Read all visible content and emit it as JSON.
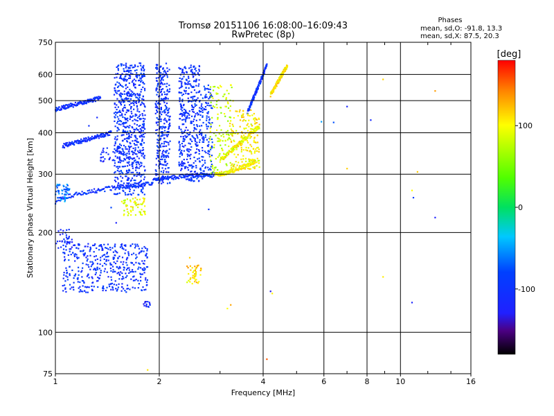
{
  "chart_data": {
    "type": "scatter",
    "title": "Tromsø 20151106 16:08:00–16:09:43",
    "subtitle": "RwPretec (8p)",
    "xlabel": "Frequency [MHz]",
    "ylabel": "Stationary phase Virtual Height [km]",
    "x_scale": "log",
    "y_scale": "log",
    "xlim": [
      1,
      16
    ],
    "ylim": [
      75,
      750
    ],
    "x_ticks": [
      {
        "value": 1,
        "label": "1"
      },
      {
        "value": 2,
        "label": "2"
      },
      {
        "value": 4,
        "label": "4"
      },
      {
        "value": 6,
        "label": "6"
      },
      {
        "value": 8,
        "label": "8"
      },
      {
        "value": 10,
        "label": "10"
      },
      {
        "value": 16,
        "label": "16"
      }
    ],
    "y_ticks": [
      {
        "value": 75,
        "label": "75"
      },
      {
        "value": 100,
        "label": "100"
      },
      {
        "value": 200,
        "label": "200"
      },
      {
        "value": 300,
        "label": "300"
      },
      {
        "value": 400,
        "label": "400"
      },
      {
        "value": 500,
        "label": "500"
      },
      {
        "value": 600,
        "label": "600"
      },
      {
        "value": 750,
        "label": "750"
      }
    ],
    "grid": true,
    "legend": {
      "title": "Phases",
      "line1": "mean, sd,O: -91.8, 13.3",
      "line2": "mean, sd,X:  87.5, 20.3",
      "placement": "top-right"
    },
    "colorbar": {
      "label": "[deg]",
      "range": [
        -180,
        180
      ],
      "ticks": [
        {
          "value": 100,
          "label": "100"
        },
        {
          "value": 0,
          "label": "0"
        },
        {
          "value": -100,
          "label": "-100"
        }
      ],
      "placement": "right"
    },
    "traces": [
      {
        "x0": 1.0,
        "x1": 1.9,
        "y0": 248,
        "y1": 282,
        "phase": -100,
        "curve": 0.6
      },
      {
        "x0": 1.9,
        "x1": 2.9,
        "y0": 282,
        "y1": 300,
        "phase": -100,
        "curve": 0.4
      },
      {
        "x0": 2.9,
        "x1": 3.8,
        "y0": 300,
        "y1": 330,
        "phase": 100,
        "curve": 1.6
      },
      {
        "x0": 1.0,
        "x1": 1.35,
        "y0": 470,
        "y1": 510,
        "phase": -105,
        "curve": 1
      },
      {
        "x0": 1.05,
        "x1": 1.45,
        "y0": 365,
        "y1": 400,
        "phase": -105,
        "curve": 1
      },
      {
        "x0": 3.6,
        "x1": 4.1,
        "y0": 460,
        "y1": 640,
        "phase": -100,
        "curve": 1
      },
      {
        "x0": 4.2,
        "x1": 4.7,
        "y0": 520,
        "y1": 640,
        "phase": 105,
        "curve": 1
      },
      {
        "x0": 3.0,
        "x1": 3.9,
        "y0": 330,
        "y1": 420,
        "phase": 100,
        "curve": 1
      }
    ],
    "regions": [
      {
        "x": [
          1.48,
          1.82
        ],
        "y": [
          260,
          650
        ],
        "phase": -100,
        "count": 700
      },
      {
        "x": [
          1.95,
          2.15
        ],
        "y": [
          280,
          650
        ],
        "phase": -100,
        "count": 320
      },
      {
        "x": [
          2.28,
          2.62
        ],
        "y": [
          285,
          640
        ],
        "phase": -100,
        "count": 380
      },
      {
        "x": [
          2.62,
          2.85
        ],
        "y": [
          290,
          560
        ],
        "phase": -95,
        "count": 140
      },
      {
        "x": [
          2.8,
          3.3
        ],
        "y": [
          300,
          560
        ],
        "phase": 80,
        "count": 130
      },
      {
        "x": [
          3.2,
          3.9
        ],
        "y": [
          310,
          470
        ],
        "phase": 100,
        "count": 180
      },
      {
        "x": [
          1.05,
          1.85
        ],
        "y": [
          132,
          185
        ],
        "phase": -100,
        "count": 420
      },
      {
        "x": [
          1.0,
          1.12
        ],
        "y": [
          175,
          205
        ],
        "phase": -110,
        "count": 40
      },
      {
        "x": [
          1.0,
          1.1
        ],
        "y": [
          248,
          280
        ],
        "phase": -60,
        "count": 50
      },
      {
        "x": [
          1.55,
          1.82
        ],
        "y": [
          225,
          255
        ],
        "phase": 95,
        "count": 60
      },
      {
        "x": [
          2.4,
          2.65
        ],
        "y": [
          140,
          160
        ],
        "phase": 110,
        "count": 45
      },
      {
        "x": [
          1.78,
          1.88
        ],
        "y": [
          118,
          124
        ],
        "phase": -110,
        "count": 14
      },
      {
        "x": [
          1.35,
          1.7
        ],
        "y": [
          325,
          360
        ],
        "phase": -110,
        "count": 50
      }
    ],
    "points": [
      {
        "x": 5.9,
        "y": 432,
        "phase": -60
      },
      {
        "x": 6.4,
        "y": 430,
        "phase": -60
      },
      {
        "x": 7.0,
        "y": 480,
        "phase": -110
      },
      {
        "x": 8.2,
        "y": 437,
        "phase": -110
      },
      {
        "x": 8.9,
        "y": 580,
        "phase": 110
      },
      {
        "x": 12.6,
        "y": 535,
        "phase": 110
      },
      {
        "x": 7.0,
        "y": 312,
        "phase": 110
      },
      {
        "x": 11.2,
        "y": 305,
        "phase": 110
      },
      {
        "x": 10.8,
        "y": 268,
        "phase": 110
      },
      {
        "x": 10.9,
        "y": 255,
        "phase": -60
      },
      {
        "x": 12.6,
        "y": 222,
        "phase": -110
      },
      {
        "x": 10.8,
        "y": 123,
        "phase": -110
      },
      {
        "x": 4.2,
        "y": 133,
        "phase": -110
      },
      {
        "x": 4.25,
        "y": 131,
        "phase": 120
      },
      {
        "x": 3.15,
        "y": 118,
        "phase": 110
      },
      {
        "x": 3.22,
        "y": 121,
        "phase": 110
      },
      {
        "x": 2.78,
        "y": 235,
        "phase": -100
      },
      {
        "x": 2.45,
        "y": 168,
        "phase": 110
      },
      {
        "x": 1.85,
        "y": 77,
        "phase": 110
      },
      {
        "x": 4.1,
        "y": 83,
        "phase": 150
      },
      {
        "x": 8.9,
        "y": 147,
        "phase": 110
      },
      {
        "x": 1.45,
        "y": 238,
        "phase": -100
      },
      {
        "x": 1.5,
        "y": 214,
        "phase": -110
      },
      {
        "x": 1.32,
        "y": 445,
        "phase": -105
      },
      {
        "x": 1.25,
        "y": 420,
        "phase": -105
      }
    ]
  }
}
